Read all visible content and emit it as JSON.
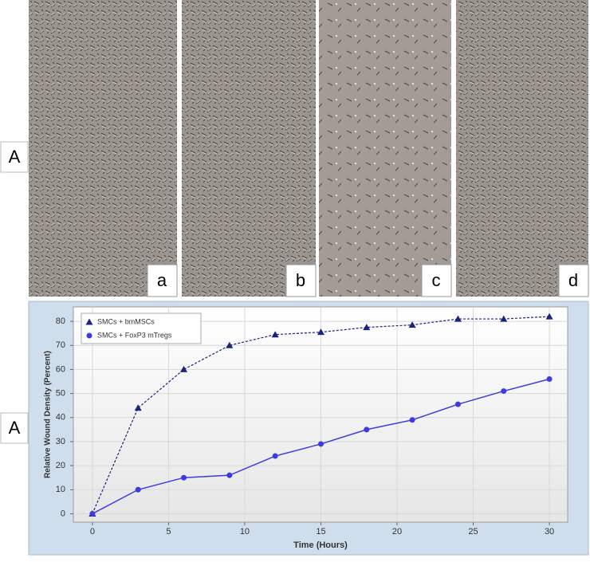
{
  "panels": {
    "row_label_top": "A",
    "images": [
      "a",
      "b",
      "c",
      "d"
    ],
    "row_label_bottom": "A"
  },
  "chart_data": {
    "type": "line",
    "x_label": "Time (Hours)",
    "y_label": "Relative Wound Density (Percent)",
    "x": [
      0,
      3,
      6,
      9,
      12,
      15,
      18,
      21,
      24,
      27,
      30
    ],
    "series": [
      {
        "name": "SMCs + bmMSCs",
        "color": "#1a237e",
        "line_style": "dashed",
        "marker": "triangle",
        "values": [
          0,
          44,
          60,
          70,
          74.5,
          75.5,
          77.5,
          78.5,
          81,
          81,
          82
        ]
      },
      {
        "name": "SMCs + FoxP3 mTregs",
        "color": "#3b3be0",
        "line_style": "solid",
        "marker": "circle",
        "values": [
          0,
          10,
          15,
          16,
          24,
          29,
          35,
          39,
          45.5,
          51,
          56
        ]
      }
    ],
    "xlim": [
      -1.25,
      31.2
    ],
    "xticks": [
      0,
      5,
      10,
      15,
      20,
      25,
      30
    ],
    "ylim": [
      -3.5,
      86
    ],
    "yticks": [
      0,
      10,
      20,
      30,
      40,
      50,
      60,
      70,
      80
    ],
    "grid": true,
    "legend": "top-left"
  }
}
